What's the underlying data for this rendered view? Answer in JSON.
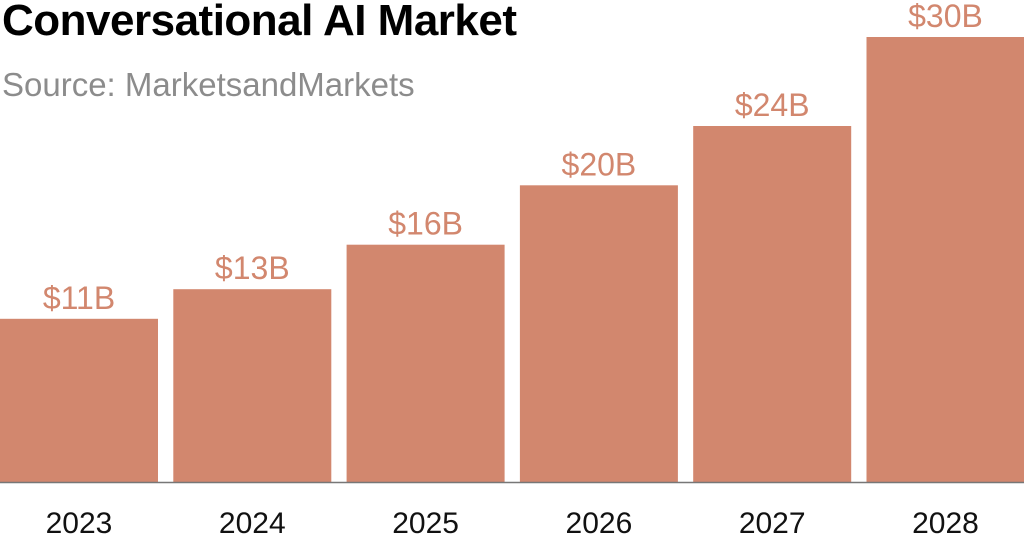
{
  "chart_data": {
    "type": "bar",
    "title": "Conversational AI Market",
    "subtitle": "Source: MarketsandMarkets",
    "categories": [
      "2023",
      "2024",
      "2025",
      "2026",
      "2027",
      "2028"
    ],
    "values": [
      11,
      13,
      16,
      20,
      24,
      30
    ],
    "value_labels": [
      "$11B",
      "$13B",
      "$16B",
      "$20B",
      "$24B",
      "$30B"
    ],
    "unit": "USD billions",
    "ylim": [
      0,
      30
    ],
    "grid": false,
    "legend": "none"
  },
  "colors": {
    "bar": "#d2876e",
    "value_label": "#d2876e",
    "baseline": "#777777"
  }
}
